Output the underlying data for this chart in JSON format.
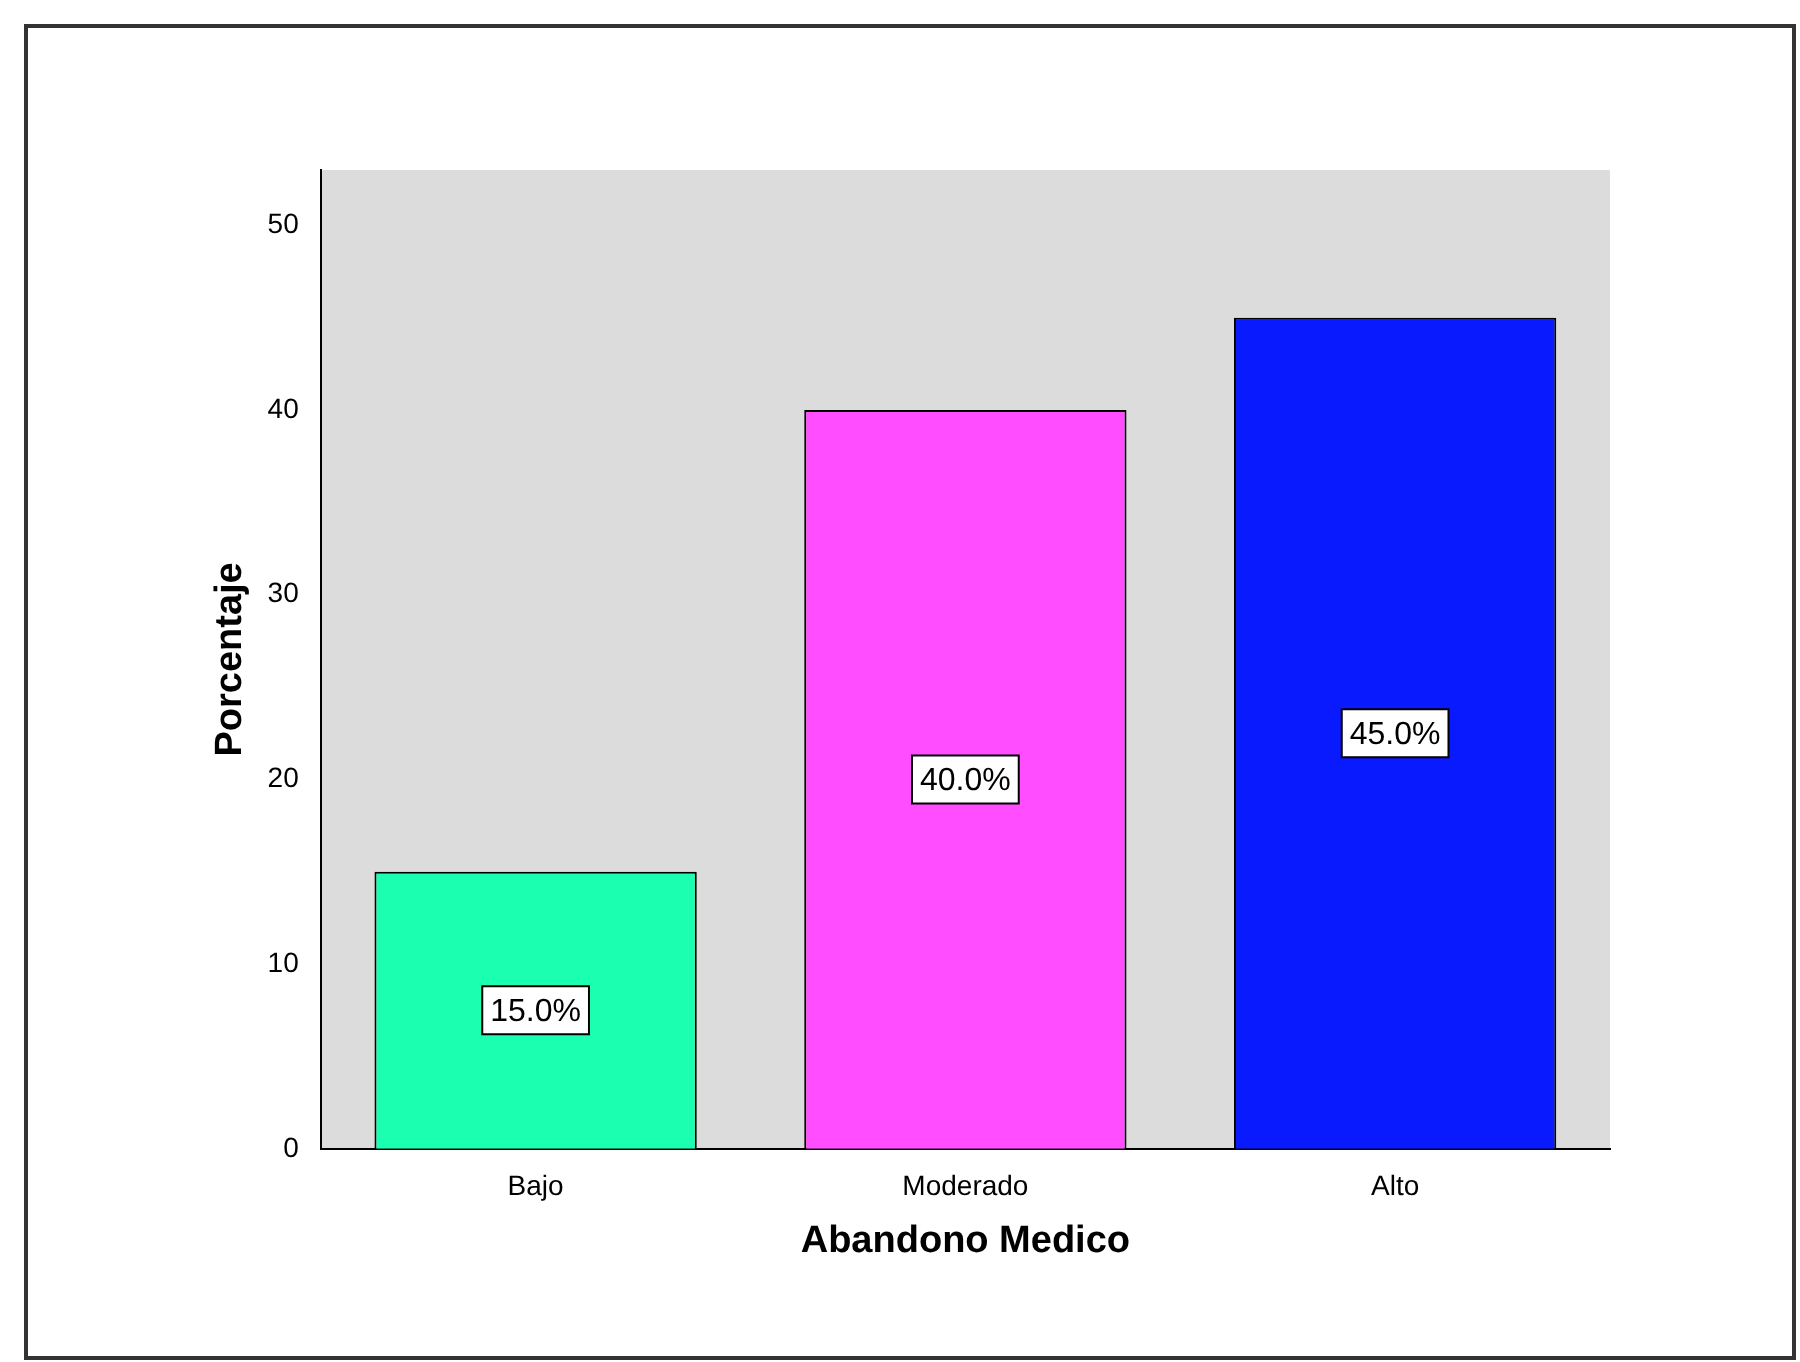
{
  "chart_data": {
    "type": "bar",
    "xlabel": "Abandono Medico",
    "ylabel": "Porcentaje",
    "categories": [
      "Bajo",
      "Moderado",
      "Alto"
    ],
    "values": [
      15,
      40,
      45
    ],
    "colors": [
      "#1affb0",
      "#ff4dff",
      "#0a1aff"
    ],
    "value_labels": [
      "15.0%",
      "40.0%",
      "45.0%"
    ],
    "ylim": [
      0,
      53
    ],
    "yticks": [
      0,
      10,
      20,
      30,
      40,
      50
    ],
    "grid": false,
    "legend": false
  }
}
